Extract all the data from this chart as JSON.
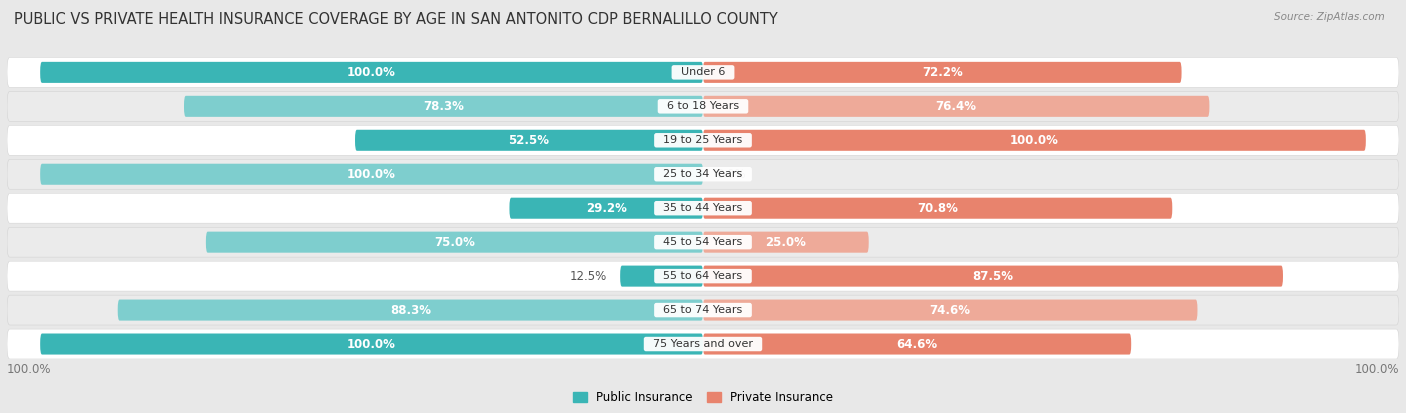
{
  "title": "PUBLIC VS PRIVATE HEALTH INSURANCE COVERAGE BY AGE IN SAN ANTONITO CDP BERNALILLO COUNTY",
  "source": "Source: ZipAtlas.com",
  "categories": [
    "Under 6",
    "6 to 18 Years",
    "19 to 25 Years",
    "25 to 34 Years",
    "35 to 44 Years",
    "45 to 54 Years",
    "55 to 64 Years",
    "65 to 74 Years",
    "75 Years and over"
  ],
  "public_values": [
    100.0,
    78.3,
    52.5,
    100.0,
    29.2,
    75.0,
    12.5,
    88.3,
    100.0
  ],
  "private_values": [
    72.2,
    76.4,
    100.0,
    0.0,
    70.8,
    25.0,
    87.5,
    74.6,
    64.6
  ],
  "public_color_dark": "#3ab5b5",
  "public_color_light": "#7ecece",
  "private_color_dark": "#e8836d",
  "private_color_light": "#eeaa99",
  "public_label": "Public Insurance",
  "private_label": "Private Insurance",
  "bg_color": "#e8e8e8",
  "row_colors": [
    "#ffffff",
    "#ebebeb",
    "#ffffff",
    "#ebebeb",
    "#ffffff",
    "#ebebeb",
    "#ffffff",
    "#ebebeb",
    "#ffffff"
  ],
  "bar_height": 0.62,
  "max_val": 100.0,
  "title_fontsize": 10.5,
  "label_fontsize": 8.5,
  "tick_fontsize": 8.5,
  "axis_label_100_left": "100.0%",
  "axis_label_100_right": "100.0%"
}
